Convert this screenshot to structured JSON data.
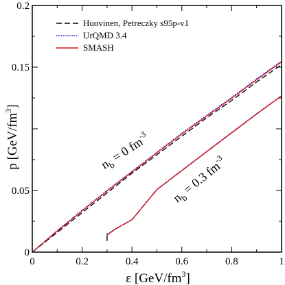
{
  "chart_data": {
    "type": "line",
    "xlabel_main": "ε [GeV/fm",
    "xlabel_sup": "3",
    "xlabel_end": "]",
    "ylabel_main": "p [GeV/fm",
    "ylabel_sup": "3",
    "ylabel_end": "]",
    "xlim": [
      0,
      1
    ],
    "ylim": [
      0,
      0.2
    ],
    "xticks": [
      0,
      0.2,
      0.4,
      0.6,
      0.8,
      1
    ],
    "xtick_labels": [
      "0",
      "0.2",
      "0.4",
      "0.6",
      "0.8",
      "1"
    ],
    "yticks": [
      0,
      0.05,
      0.15,
      0.2
    ],
    "ytick_labels": [
      "0",
      "0.05",
      "0.15",
      "0.2"
    ],
    "grid": false,
    "legend_placement": "top-left",
    "series": [
      {
        "name": "Huovinen, Petreczky s95p-v1",
        "color": "#000000",
        "dash": "dashed",
        "curves": [
          {
            "x": [
              0,
              0.1,
              0.2,
              0.3,
              0.4,
              0.5,
              0.6,
              0.7,
              0.8,
              0.9,
              1.0
            ],
            "y": [
              0,
              0.016,
              0.032,
              0.048,
              0.064,
              0.079,
              0.094,
              0.109,
              0.123,
              0.138,
              0.152
            ]
          },
          {
            "x": [
              0.3,
              0.3,
              0.31,
              0.33,
              0.36,
              0.4,
              0.5,
              0.6,
              0.7,
              0.8,
              0.9,
              1.0
            ],
            "y": [
              0.009,
              0.0134,
              0.0154,
              0.0182,
              0.0218,
              0.0263,
              0.0507,
              0.0661,
              0.0815,
              0.0968,
              0.112,
              0.1268
            ]
          }
        ]
      },
      {
        "name": "UrQMD 3.4",
        "color": "#1a1aff",
        "dash": "dotted",
        "curves": [
          {
            "x": [
              0,
              0.1,
              0.2,
              0.3,
              0.4,
              0.5,
              0.6,
              0.7,
              0.8,
              0.9,
              1.0
            ],
            "y": [
              0,
              0.0175,
              0.034,
              0.05,
              0.0655,
              0.081,
              0.0965,
              0.111,
              0.1255,
              0.1405,
              0.155
            ]
          },
          {
            "x": [
              0.3,
              0.3,
              0.31,
              0.33,
              0.36,
              0.4,
              0.5,
              0.6,
              0.7,
              0.8,
              0.9,
              1.0
            ],
            "y": [
              0.0156,
              0.0138,
              0.0158,
              0.0184,
              0.0218,
              0.0263,
              0.0509,
              0.0663,
              0.0817,
              0.097,
              0.1122,
              0.1268
            ]
          }
        ]
      },
      {
        "name": "SMASH",
        "color": "#dd1111",
        "dash": "solid",
        "curves": [
          {
            "x": [
              0,
              0.1,
              0.2,
              0.3,
              0.4,
              0.5,
              0.6,
              0.7,
              0.8,
              0.9,
              1.0
            ],
            "y": [
              0,
              0.017,
              0.0335,
              0.0495,
              0.065,
              0.0805,
              0.0958,
              0.1103,
              0.1248,
              0.1398,
              0.1543
            ]
          },
          {
            "x": [
              0.3,
              0.31,
              0.33,
              0.36,
              0.4,
              0.5,
              0.6,
              0.7,
              0.8,
              0.9,
              1.0
            ],
            "y": [
              0.0134,
              0.0154,
              0.0182,
              0.0217,
              0.0262,
              0.0507,
              0.0661,
              0.0815,
              0.0968,
              0.112,
              0.1268
            ]
          }
        ]
      }
    ],
    "annotations": [
      {
        "id": "nb0",
        "base": "n",
        "sub": "b",
        "rest": " = 0 fm",
        "sup": "-3",
        "x": 0.38,
        "y": 0.079,
        "angle_deg": -33
      },
      {
        "id": "nb03",
        "base": "n",
        "sub": "b",
        "rest": " = 0.3 fm",
        "sup": "-3",
        "x": 0.68,
        "y": 0.056,
        "angle_deg": -39
      }
    ]
  }
}
